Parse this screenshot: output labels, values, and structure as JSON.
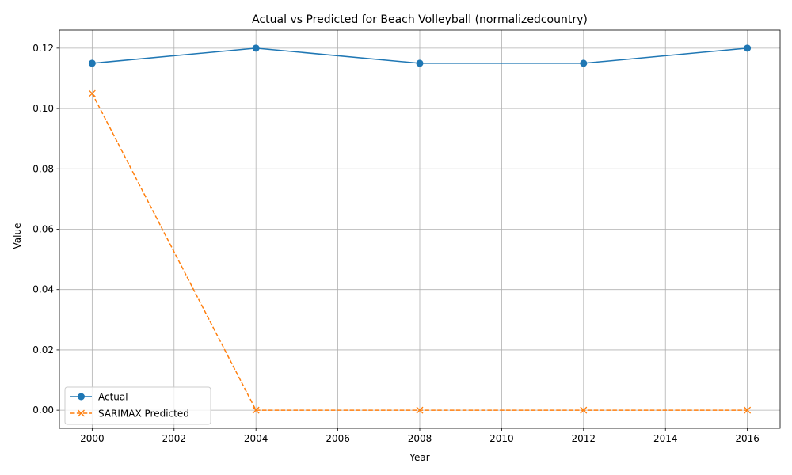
{
  "chart_data": {
    "type": "line",
    "title": "Actual vs Predicted for Beach Volleyball (normalizedcountry)",
    "xlabel": "Year",
    "ylabel": "Value",
    "xlim": [
      1999.2,
      2016.8
    ],
    "ylim": [
      -0.006,
      0.126
    ],
    "xticks": [
      2000,
      2002,
      2004,
      2006,
      2008,
      2010,
      2012,
      2014,
      2016
    ],
    "yticks": [
      0.0,
      0.02,
      0.04,
      0.06,
      0.08,
      0.1,
      0.12
    ],
    "ytick_labels": [
      "0.00",
      "0.02",
      "0.04",
      "0.06",
      "0.08",
      "0.10",
      "0.12"
    ],
    "grid": true,
    "legend_position": "lower-left",
    "x": [
      2000,
      2004,
      2008,
      2012,
      2016
    ],
    "series": [
      {
        "name": "Actual",
        "values": [
          0.115,
          0.12,
          0.115,
          0.115,
          0.12
        ],
        "color": "#1f77b4",
        "marker": "circle",
        "linestyle": "solid"
      },
      {
        "name": "SARIMAX Predicted",
        "values": [
          0.105,
          0.0,
          0.0,
          0.0,
          0.0
        ],
        "color": "#ff7f0e",
        "marker": "x",
        "linestyle": "dashed"
      }
    ]
  }
}
